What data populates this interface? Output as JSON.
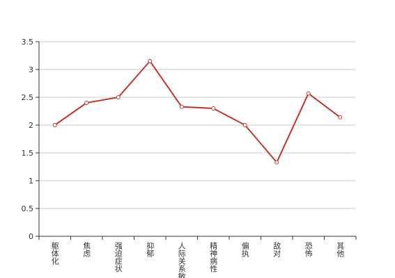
{
  "chart_data": {
    "type": "line",
    "categories": [
      "躯体化",
      "焦虑",
      "强迫症状",
      "抑郁",
      "人际关系敏感",
      "精神病性",
      "偏执",
      "敌对",
      "恐怖",
      "其他"
    ],
    "series": [
      {
        "color": "#c23531",
        "values": [
          2.0,
          2.4,
          2.5,
          3.15,
          2.33,
          2.3,
          2.0,
          1.33,
          2.57,
          2.14
        ]
      }
    ],
    "ylim": [
      0,
      3.5
    ],
    "yticks": [
      0,
      0.5,
      1,
      1.5,
      2,
      2.5,
      3,
      3.5
    ],
    "grid": true
  }
}
